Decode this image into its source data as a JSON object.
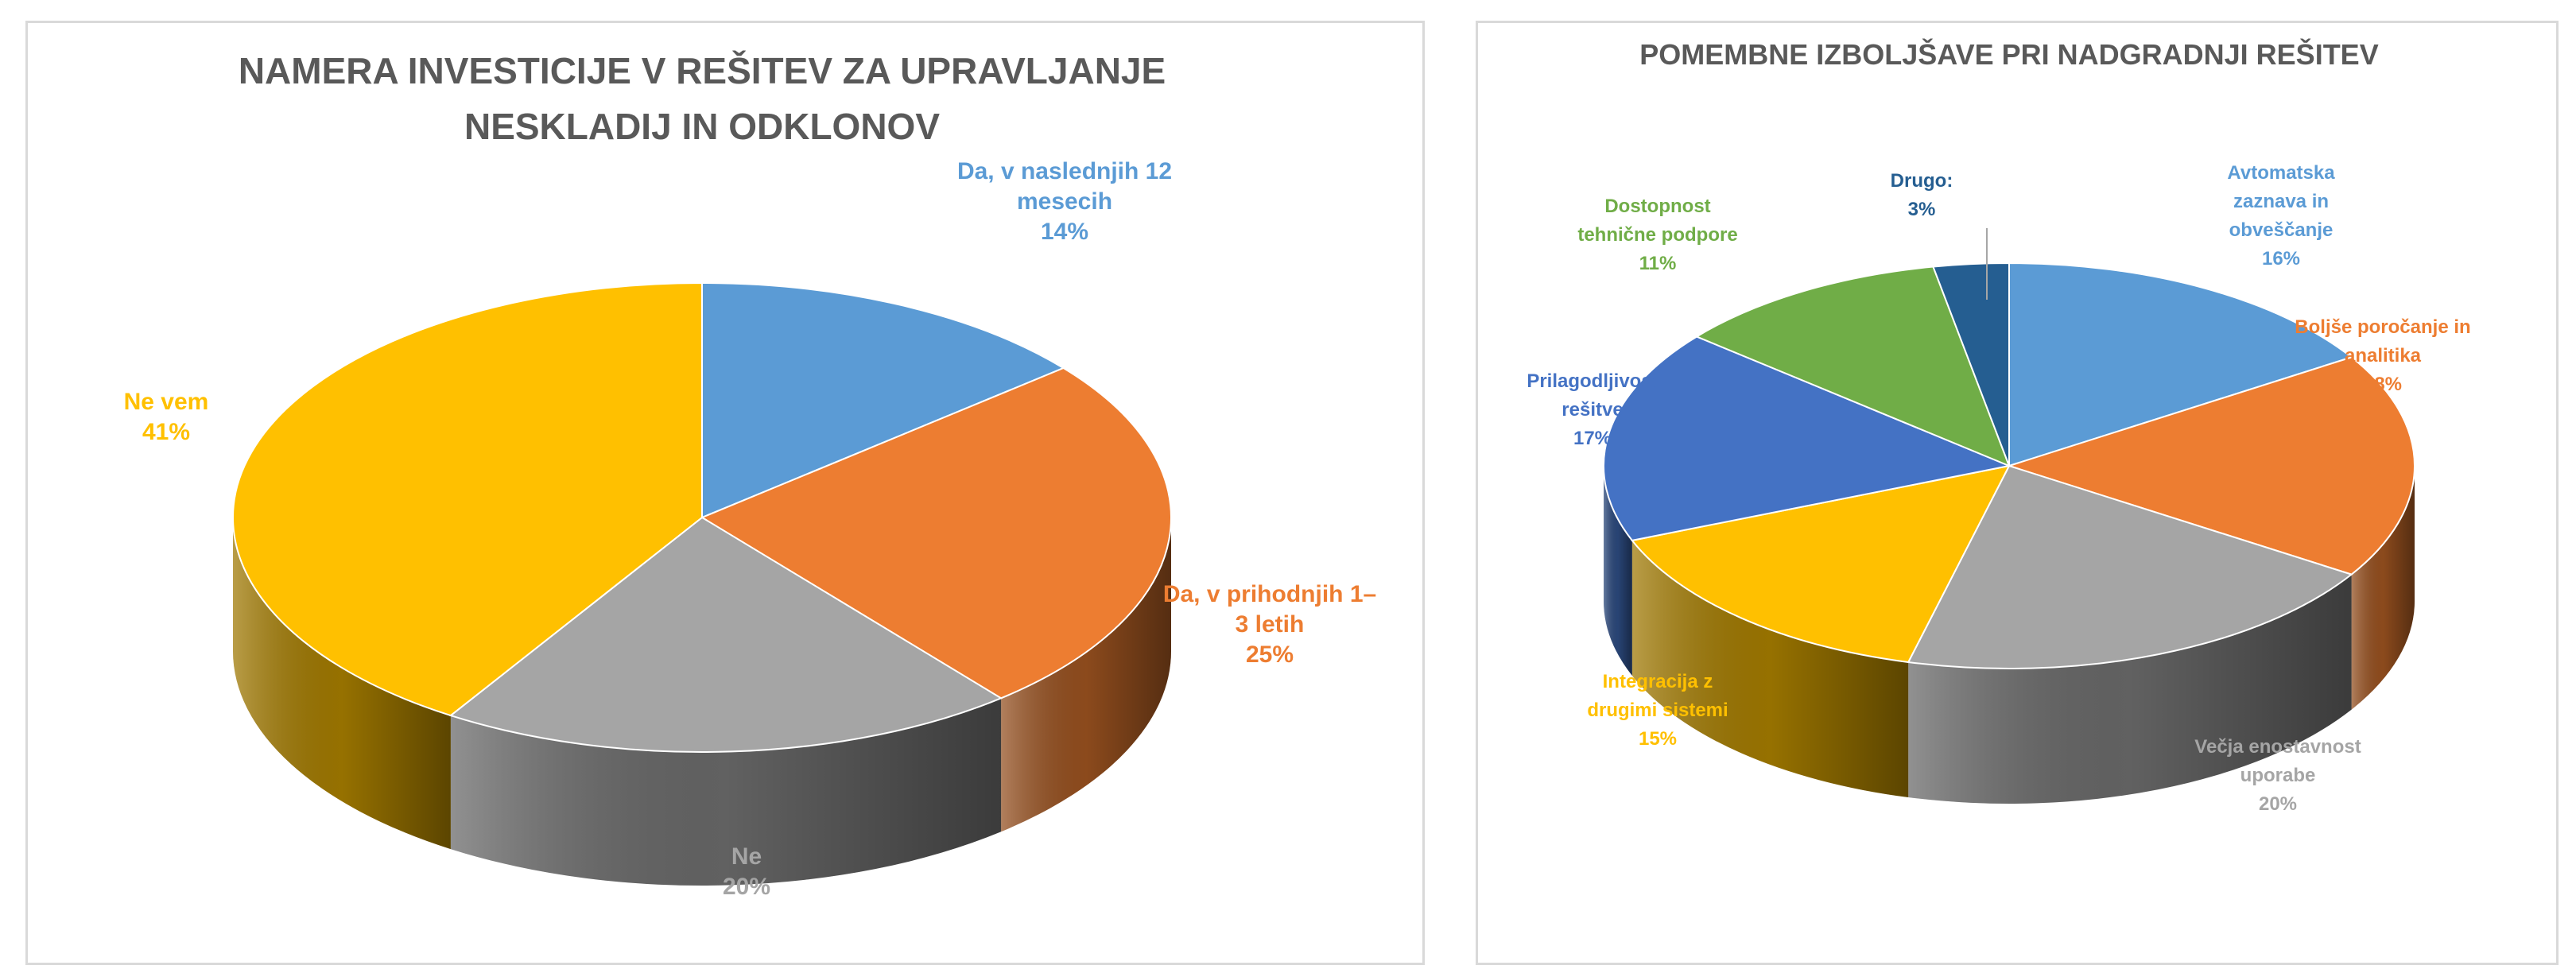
{
  "chart_data": [
    {
      "type": "pie",
      "title": "NAMERA INVESTICIJE V REŠITEV ZA UPRAVLJANJE NESKLADIJ IN ODKLONOV",
      "title_lines": [
        "NAMERA INVESTICIJE V REŠITEV ZA UPRAVLJANJE",
        "NESKLADIJ IN ODKLONOV"
      ],
      "style": "3d",
      "slices": [
        {
          "label_lines": [
            "Da, v naslednjih 12",
            "mesecih"
          ],
          "label": "Da, v naslednjih 12 mesecih",
          "value": 14,
          "pct": "14%",
          "color": "#5B9BD5"
        },
        {
          "label_lines": [
            "Da, v prihodnjih 1–",
            "3 letih"
          ],
          "label": "Da, v prihodnjih 1–3 letih",
          "value": 25,
          "pct": "25%",
          "color": "#ED7D31"
        },
        {
          "label_lines": [
            "Ne"
          ],
          "label": "Ne",
          "value": 20,
          "pct": "20%",
          "color": "#A5A5A5"
        },
        {
          "label_lines": [
            "Ne vem"
          ],
          "label": "Ne vem",
          "value": 41,
          "pct": "41%",
          "color": "#FFC000"
        }
      ]
    },
    {
      "type": "pie",
      "title": "POMEMBNE IZBOLJŠAVE PRI NADGRADNJI REŠITEV",
      "title_lines": [
        "POMEMBNE IZBOLJŠAVE PRI NADGRADNJI REŠITEV"
      ],
      "style": "3d",
      "slices": [
        {
          "label_lines": [
            "Avtomatska",
            "zaznava in",
            "obveščanje"
          ],
          "label": "Avtomatska zaznava in obveščanje",
          "value": 16,
          "pct": "16%",
          "color": "#5B9BD5"
        },
        {
          "label_lines": [
            "Boljše poročanje in",
            "analitika"
          ],
          "label": "Boljše poročanje in analitika",
          "value": 18,
          "pct": "18%",
          "color": "#ED7D31"
        },
        {
          "label_lines": [
            "Večja enostavnost",
            "uporabe"
          ],
          "label": "Večja enostavnost uporabe",
          "value": 20,
          "pct": "20%",
          "color": "#A5A5A5"
        },
        {
          "label_lines": [
            "Integracija z",
            "drugimi sistemi"
          ],
          "label": "Integracija z drugimi sistemi",
          "value": 15,
          "pct": "15%",
          "color": "#FFC000"
        },
        {
          "label_lines": [
            "Prilagodljivost",
            "rešitve"
          ],
          "label": "Prilagodljivost rešitve",
          "value": 17,
          "pct": "17%",
          "color": "#4472C4"
        },
        {
          "label_lines": [
            "Dostopnost",
            "tehnične podpore"
          ],
          "label": "Dostopnost tehnične podpore",
          "value": 11,
          "pct": "11%",
          "color": "#70AD47"
        },
        {
          "label_lines": [
            "Drugo:"
          ],
          "label": "Drugo:",
          "value": 3,
          "pct": "3%",
          "color": "#255E91"
        }
      ]
    }
  ]
}
